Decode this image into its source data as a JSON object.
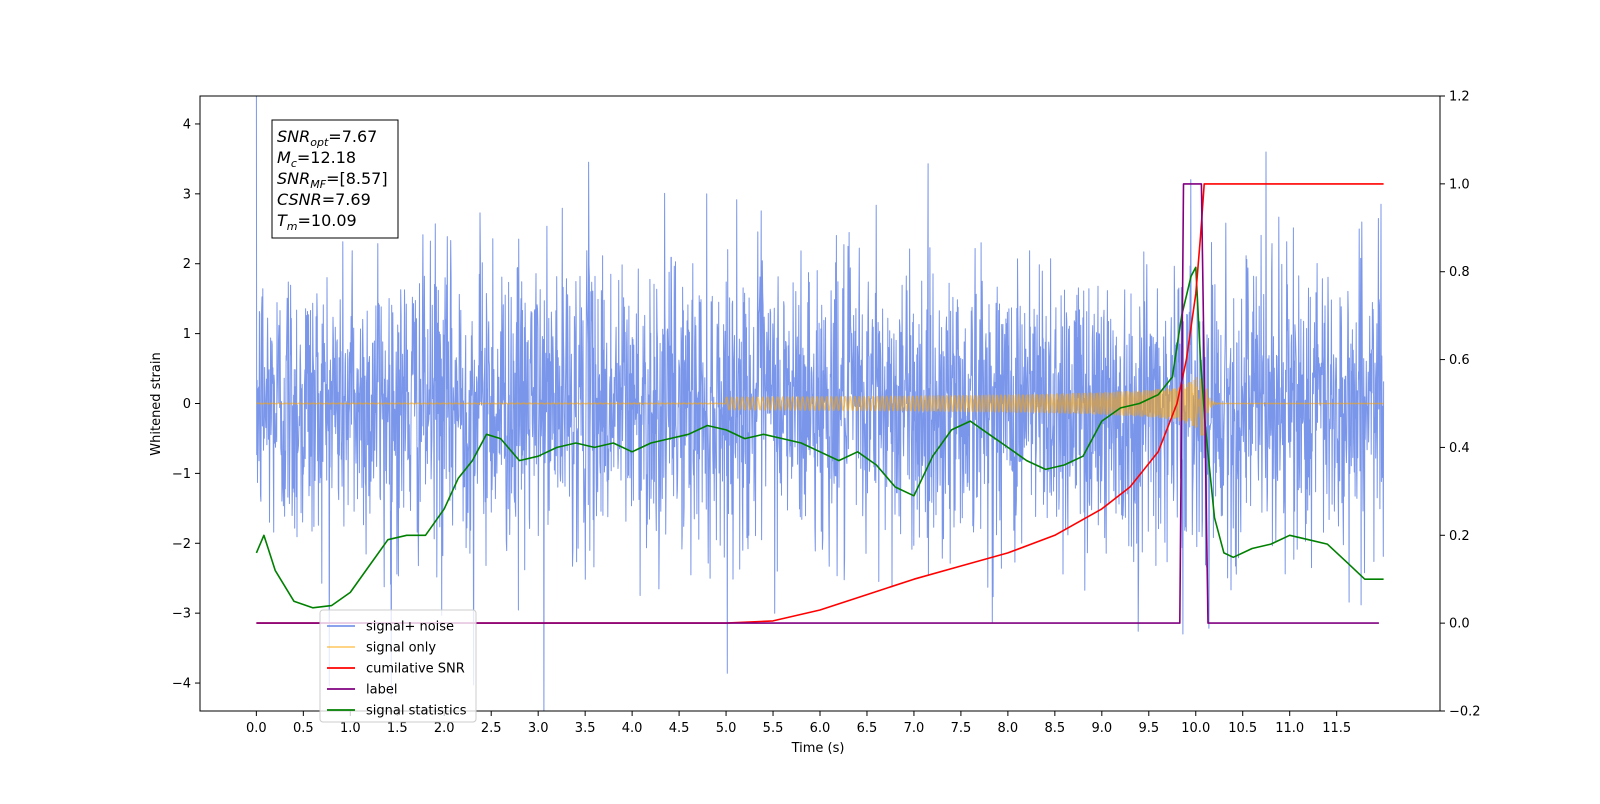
{
  "chart_data": {
    "type": "line",
    "xlabel": "Time (s)",
    "ylabel": "Whitened strain",
    "xlim": [
      -0.6,
      12.6
    ],
    "ylim": [
      -4.4,
      4.4
    ],
    "y2lim": [
      -0.2,
      1.2
    ],
    "x_ticks": [
      "0.0",
      "0.5",
      "1.0",
      "1.5",
      "2.0",
      "2.5",
      "3.0",
      "3.5",
      "4.0",
      "4.5",
      "5.0",
      "5.5",
      "6.0",
      "6.5",
      "7.0",
      "7.5",
      "8.0",
      "8.5",
      "9.0",
      "9.5",
      "10.0",
      "10.5",
      "11.0",
      "11.5"
    ],
    "y_ticks": [
      "4",
      "3",
      "2",
      "1",
      "0",
      "−1",
      "−2",
      "−3",
      "−4"
    ],
    "y2_ticks": [
      "1.2",
      "1.0",
      "0.8",
      "0.6",
      "0.4",
      "0.2",
      "0.0",
      "−0.2"
    ],
    "annotation": [
      {
        "sym": "SNR",
        "sub": "opt",
        "val": "=7.67"
      },
      {
        "sym": "M",
        "sub": "c",
        "val": "=12.18"
      },
      {
        "sym": "SNR",
        "sub": "MF",
        "val": "=[8.57]"
      },
      {
        "sym": "CSNR",
        "sub": "",
        "val": "=7.69"
      },
      {
        "sym": "T",
        "sub": "m",
        "val": "=10.09"
      }
    ],
    "legend_position": "lower-left",
    "series": [
      {
        "name": "signal+ noise",
        "color": "#4169e1",
        "axis": "left",
        "kind": "gaussian-noise",
        "std": 1.0,
        "t_range": [
          0.0,
          12.0
        ]
      },
      {
        "name": "signal only",
        "color": "#ffa500",
        "axis": "left",
        "kind": "chirp",
        "merger_time": 10.09,
        "peak_amplitude": 0.45
      },
      {
        "name": "cumilative SNR",
        "color": "#ff0000",
        "axis": "right",
        "x": [
          0.0,
          5.0,
          5.5,
          6.0,
          6.5,
          7.0,
          7.5,
          8.0,
          8.5,
          9.0,
          9.3,
          9.6,
          9.8,
          9.9,
          10.0,
          10.05,
          10.09,
          12.0
        ],
        "y": [
          0.0,
          0.0,
          0.005,
          0.03,
          0.065,
          0.1,
          0.13,
          0.16,
          0.2,
          0.26,
          0.31,
          0.39,
          0.5,
          0.6,
          0.75,
          0.88,
          1.0,
          1.0
        ]
      },
      {
        "name": "label",
        "color": "#800080",
        "axis": "right",
        "x": [
          0.0,
          9.83,
          9.87,
          10.06,
          10.13,
          11.95
        ],
        "y": [
          0.0,
          0.0,
          1.0,
          1.0,
          0.0,
          0.0
        ]
      },
      {
        "name": "signal statistics",
        "color": "#008000",
        "axis": "right",
        "x": [
          0.0,
          0.08,
          0.2,
          0.4,
          0.6,
          0.8,
          1.0,
          1.2,
          1.4,
          1.6,
          1.8,
          2.0,
          2.15,
          2.3,
          2.45,
          2.6,
          2.8,
          3.0,
          3.2,
          3.4,
          3.6,
          3.8,
          4.0,
          4.2,
          4.4,
          4.6,
          4.8,
          5.0,
          5.2,
          5.4,
          5.6,
          5.8,
          6.0,
          6.2,
          6.4,
          6.6,
          6.8,
          7.0,
          7.2,
          7.4,
          7.6,
          7.8,
          8.0,
          8.2,
          8.4,
          8.6,
          8.8,
          9.0,
          9.2,
          9.4,
          9.6,
          9.75,
          9.85,
          9.95,
          10.0,
          10.05,
          10.1,
          10.2,
          10.3,
          10.4,
          10.6,
          10.8,
          11.0,
          11.2,
          11.4,
          11.6,
          11.8,
          12.0
        ],
        "y": [
          0.16,
          0.2,
          0.12,
          0.05,
          0.035,
          0.04,
          0.07,
          0.13,
          0.19,
          0.2,
          0.2,
          0.26,
          0.33,
          0.37,
          0.43,
          0.42,
          0.37,
          0.38,
          0.4,
          0.41,
          0.4,
          0.41,
          0.39,
          0.41,
          0.42,
          0.43,
          0.45,
          0.44,
          0.42,
          0.43,
          0.42,
          0.41,
          0.39,
          0.37,
          0.39,
          0.36,
          0.31,
          0.29,
          0.38,
          0.44,
          0.46,
          0.43,
          0.4,
          0.37,
          0.35,
          0.36,
          0.38,
          0.46,
          0.49,
          0.5,
          0.52,
          0.56,
          0.7,
          0.79,
          0.81,
          0.6,
          0.45,
          0.24,
          0.16,
          0.15,
          0.17,
          0.18,
          0.2,
          0.19,
          0.18,
          0.14,
          0.1,
          0.1
        ]
      }
    ]
  }
}
